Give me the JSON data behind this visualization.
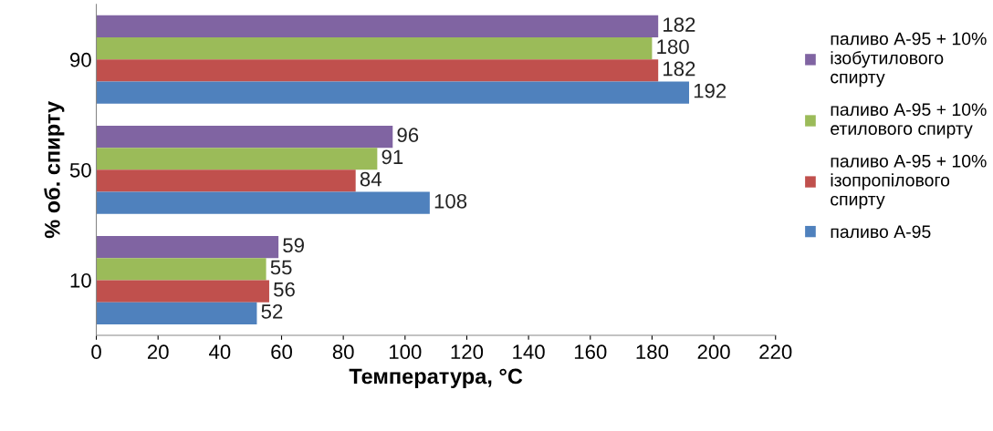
{
  "chart_data": {
    "type": "bar",
    "orientation": "horizontal",
    "ylabel": "% об. спирту",
    "xlabel": "Температура, °С",
    "categories": [
      "90",
      "50",
      "10"
    ],
    "series": [
      {
        "name": "паливо А-95 + 10%\nізобутилового\nспирту",
        "color": "#8064a2",
        "values": [
          182,
          96,
          59
        ]
      },
      {
        "name": "паливо А-95 + 10%\nетилового спирту",
        "color": "#9bbb59",
        "values": [
          180,
          91,
          55
        ]
      },
      {
        "name": "паливо А-95 + 10%\nізопропілового\nспирту",
        "color": "#c0504d",
        "values": [
          182,
          84,
          56
        ]
      },
      {
        "name": "паливо А-95",
        "color": "#4f81bd",
        "values": [
          192,
          108,
          52
        ]
      }
    ],
    "xlim": [
      0,
      220
    ],
    "xticks": [
      0,
      20,
      40,
      60,
      80,
      100,
      120,
      140,
      160,
      180,
      200,
      220
    ],
    "data_labels": true,
    "legend": "right",
    "grid": false
  }
}
